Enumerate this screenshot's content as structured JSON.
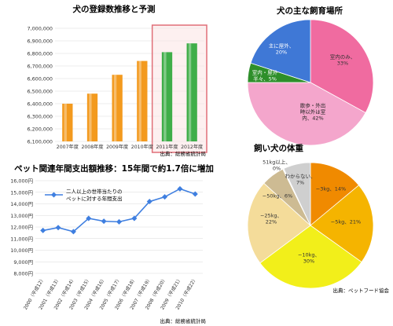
{
  "chart_data": [
    {
      "type": "bar",
      "title": "犬の登録数推移と予測",
      "source": "出典：総務省統計局",
      "categories": [
        "2007年度",
        "2008年度",
        "2009年度",
        "2010年度",
        "2011年度",
        "2012年度"
      ],
      "values": [
        6400000,
        6480000,
        6630000,
        6740000,
        6810000,
        6880000
      ],
      "bar_colors": [
        "#f39a1e",
        "#f39a1e",
        "#f39a1e",
        "#f39a1e",
        "#3fae49",
        "#3fae49"
      ],
      "highlight_categories": [
        "2011年度",
        "2012年度"
      ],
      "highlight_color": "#e06f78",
      "ylim": [
        6100000,
        7000000
      ],
      "yticks": [
        "6,100,000",
        "6,200,000",
        "6,300,000",
        "6,400,000",
        "6,500,000",
        "6,600,000",
        "6,700,000",
        "6,800,000",
        "6,900,000",
        "7,000,000"
      ],
      "grid": true
    },
    {
      "type": "pie",
      "title": "犬の主な飼育場所",
      "slices": [
        {
          "label": "室内のみ、",
          "label2": "33%",
          "value": 33,
          "color": "#f06ba0"
        },
        {
          "label": "散歩・外出",
          "label2": "時以外は室",
          "label3": "内、42%",
          "value": 42,
          "color": "#f4a6cc"
        },
        {
          "label": "室内・屋外",
          "label2": "半々、5%",
          "value": 5,
          "color": "#2e8f2a"
        },
        {
          "label": "主に屋外、",
          "label2": "20%",
          "value": 20,
          "color": "#3f78d6"
        }
      ]
    },
    {
      "type": "line",
      "title": "ペット関連年間支出額推移：15年間で約1.7倍に増加",
      "source": "出典：総務省統計局",
      "legend": "二人以上の世帯当たりの\nペットに対する年間支出",
      "legend_line1": "二人以上の世帯当たりの",
      "legend_line2": "ペットに対する年間支出",
      "legend_position": "top-left",
      "x": [
        "2000（平成12）",
        "2001（平成13）",
        "2002（平成14）",
        "2003（平成15）",
        "2004（平成16）",
        "2005（平成17）",
        "2006（平成18）",
        "2007（平成19）",
        "2008（平成20）",
        "2009（平成21）",
        "2010（平成22）"
      ],
      "values": [
        11700,
        11950,
        11600,
        12750,
        12500,
        12450,
        12750,
        14200,
        14600,
        15300,
        14850
      ],
      "color": "#3f7fe0",
      "ylim": [
        8000,
        16000
      ],
      "yticks": [
        "8,000円",
        "9,000円",
        "10,000円",
        "11,000円",
        "12,000円",
        "13,000円",
        "14,000円",
        "15,000円",
        "16,000円"
      ],
      "grid": true
    },
    {
      "type": "pie",
      "title": "飼い犬の体重",
      "source": "出典：ペットフード協会",
      "slices": [
        {
          "label": "~3kg、14%",
          "value": 14,
          "color": "#f08a00"
        },
        {
          "label": "~5kg、21%",
          "value": 21,
          "color": "#f5b400"
        },
        {
          "label": "~10kg、",
          "label2": "30%",
          "value": 30,
          "color": "#f2ef1a"
        },
        {
          "label": "~25kg、",
          "label2": "22%",
          "value": 22,
          "color": "#f4dc9a"
        },
        {
          "label": "~50kg、6%",
          "value": 6,
          "color": "#cdbb93"
        },
        {
          "label": "51kg以上、",
          "label2": "0%",
          "value": 0.3,
          "color": "#f3f3f3"
        },
        {
          "label": "わからない、",
          "label2": "7%",
          "value": 7,
          "color": "#cfcfcf"
        }
      ]
    }
  ]
}
